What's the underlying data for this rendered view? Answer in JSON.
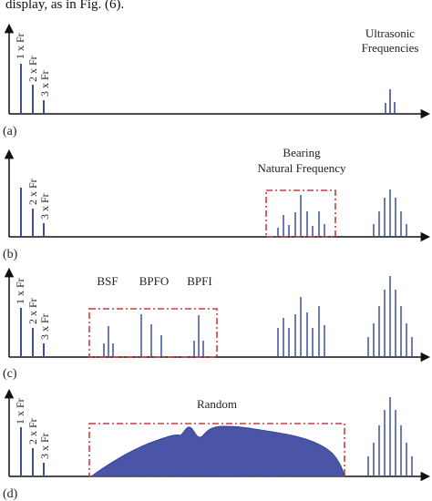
{
  "header_text": "display, as in Fig. (6).",
  "colors": {
    "spectral_line": "#3c4f9e",
    "fill": "#4a55a8",
    "box": "#d23a3a",
    "axis": "#111111"
  },
  "panels": [
    {
      "id": "a",
      "panel_label": "(a)",
      "harmonic_labels": [
        "1 x Fr",
        "2 x Fr",
        "3 x Fr"
      ],
      "annotation_lines": [
        "Ultrasonic",
        "Frequencies"
      ]
    },
    {
      "id": "b",
      "panel_label": "(b)",
      "harmonic_labels": [
        "",
        "2 x Fr",
        "3 x Fr"
      ],
      "annotation_lines": [
        "Bearing",
        "Natural Frequency"
      ]
    },
    {
      "id": "c",
      "panel_label": "(c)",
      "harmonic_labels": [
        "1 x Fr",
        "2 x Fr",
        "3 x Fr"
      ],
      "fault_labels": [
        "BSF",
        "BPFO",
        "BPFI"
      ]
    },
    {
      "id": "d",
      "panel_label": "(d)",
      "harmonic_labels": [
        "1 x Fr",
        "2 x Fr",
        "3 x Fr"
      ],
      "annotation_lines": [
        "Random"
      ]
    }
  ]
}
